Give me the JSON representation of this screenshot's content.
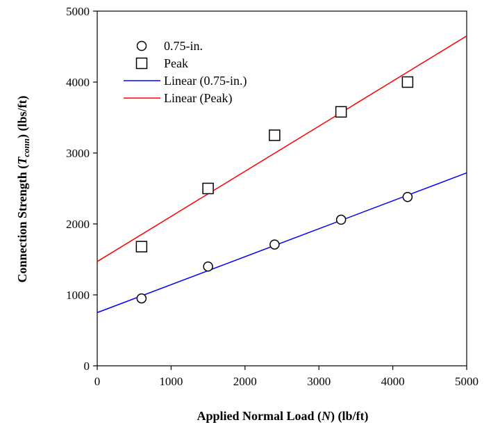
{
  "chart_data": {
    "type": "scatter",
    "xlabel": {
      "before": "Applied Normal Load (",
      "var": "N",
      "after": ") (lb/ft)"
    },
    "ylabel": {
      "before": "Connection Strength (",
      "var": "T",
      "sub": "conn",
      "after": ") (lbs/ft)"
    },
    "xlim": [
      0,
      5000
    ],
    "ylim": [
      0,
      5000
    ],
    "xticks": [
      0,
      1000,
      2000,
      3000,
      4000,
      5000
    ],
    "yticks": [
      0,
      1000,
      2000,
      3000,
      4000,
      5000
    ],
    "grid": false,
    "legend_position": "top-left",
    "series": [
      {
        "name": "0.75-in.",
        "marker": "circle",
        "color": "#000000",
        "x": [
          600,
          1500,
          2400,
          3300,
          4200
        ],
        "y": [
          950,
          1400,
          1710,
          2060,
          2380
        ]
      },
      {
        "name": "Peak",
        "marker": "square",
        "color": "#000000",
        "x": [
          600,
          1500,
          2400,
          3300,
          4200
        ],
        "y": [
          1680,
          2500,
          3250,
          3580,
          4000
        ]
      }
    ],
    "trendlines": [
      {
        "name": "Linear (0.75-in.)",
        "color": "#0000ff",
        "x": [
          0,
          5000
        ],
        "y": [
          750,
          2720
        ]
      },
      {
        "name": "Linear (Peak)",
        "color": "#ff0000",
        "x": [
          0,
          5000
        ],
        "y": [
          1470,
          4650
        ]
      }
    ]
  }
}
